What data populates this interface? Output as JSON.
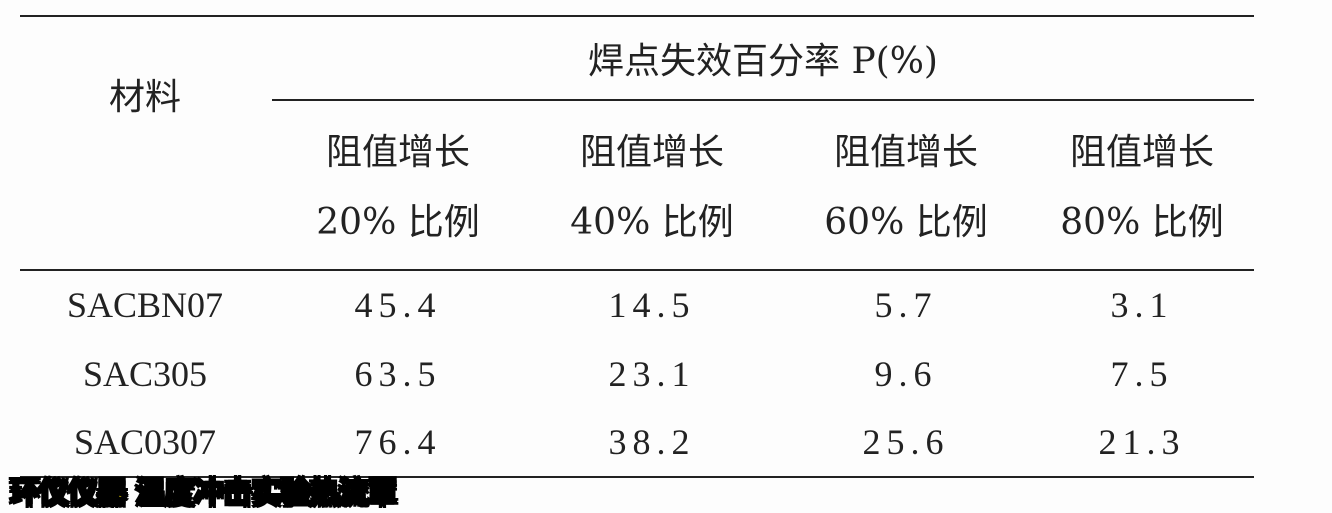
{
  "table": {
    "row_header": "材料",
    "group_header": "焊点失效百分率 P(%)",
    "columns": [
      {
        "line1": "阻值增长",
        "line2": "20% 比例"
      },
      {
        "line1": "阻值增长",
        "line2": "40% 比例"
      },
      {
        "line1": "阻值增长",
        "line2": "60% 比例"
      },
      {
        "line1": "阻值增长",
        "line2": "80% 比例"
      }
    ],
    "rows": [
      {
        "material": "SACBN07",
        "values": [
          "45.4",
          "14.5",
          "5.7",
          "3.1"
        ]
      },
      {
        "material": "SAC305",
        "values": [
          "63.5",
          "23.1",
          "9.6",
          "7.5"
        ]
      },
      {
        "material": "SAC0307",
        "values": [
          "76.4",
          "38.2",
          "25.6",
          "21.3"
        ]
      }
    ]
  },
  "watermark": "环仪仪器 温度冲击实验热流罩"
}
